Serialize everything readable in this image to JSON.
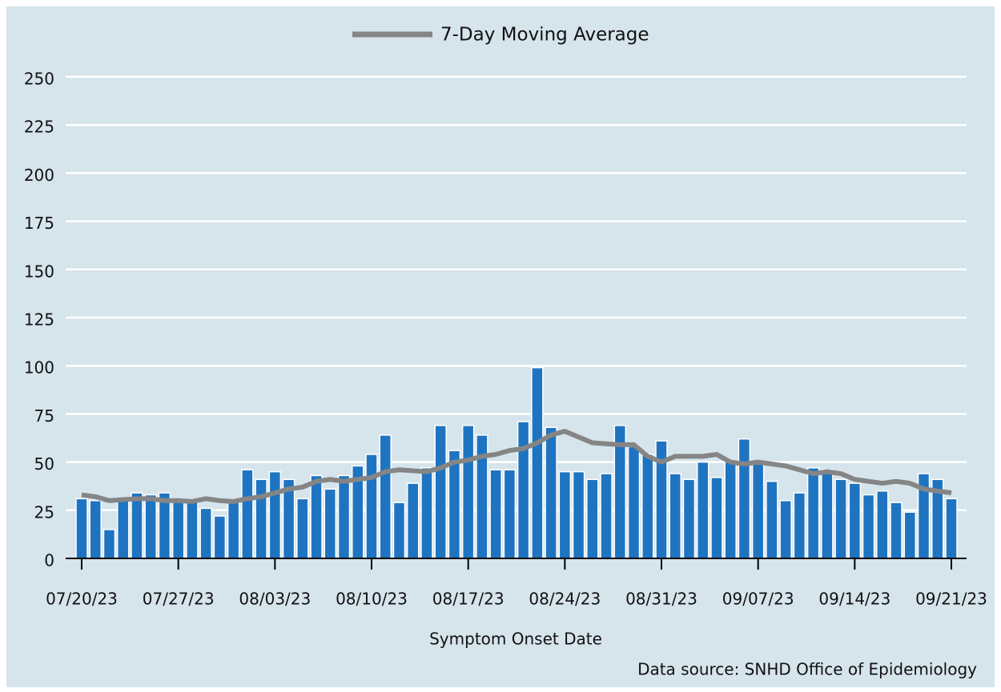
{
  "chart_data": {
    "type": "bar",
    "xlabel": "Symptom Onset Date",
    "source": "Data source: SNHD Office of Epidemiology",
    "categories": [
      "07/20/23",
      null,
      null,
      null,
      null,
      null,
      null,
      "07/27/23",
      null,
      null,
      null,
      null,
      null,
      null,
      "08/03/23",
      null,
      null,
      null,
      null,
      null,
      null,
      "08/10/23",
      null,
      null,
      null,
      null,
      null,
      null,
      "08/17/23",
      null,
      null,
      null,
      null,
      null,
      null,
      "08/24/23",
      null,
      null,
      null,
      null,
      null,
      null,
      "08/31/23",
      null,
      null,
      null,
      null,
      null,
      null,
      "09/07/23",
      null,
      null,
      null,
      null,
      null,
      null,
      "09/14/23",
      null,
      null,
      null,
      null,
      null,
      null,
      "09/21/23"
    ],
    "series": [
      {
        "type": "bar",
        "color": "#1f74c1",
        "values": [
          31,
          30,
          15,
          30,
          34,
          33,
          34,
          30,
          30,
          26,
          22,
          30,
          46,
          41,
          45,
          41,
          31,
          43,
          36,
          43,
          48,
          54,
          64,
          29,
          39,
          47,
          69,
          56,
          69,
          64,
          46,
          46,
          71,
          99,
          68,
          45,
          45,
          41,
          44,
          69,
          58,
          54,
          61,
          44,
          41,
          50,
          42,
          50,
          62,
          49,
          40,
          30,
          34,
          47,
          46,
          41,
          39,
          33,
          35,
          29,
          24,
          44,
          41,
          31
        ]
      },
      {
        "type": "line",
        "name": "7-Day Moving Average",
        "color": "#858585",
        "values": [
          33,
          32,
          30,
          30.5,
          31,
          31,
          30,
          30,
          29.5,
          31,
          30,
          29.5,
          31,
          32,
          34,
          36,
          37,
          40,
          41,
          40,
          41,
          42,
          45,
          46,
          45.5,
          45,
          47,
          50,
          51,
          53,
          54,
          56,
          57,
          60,
          64,
          66,
          63,
          60,
          59.5,
          59,
          59,
          53,
          50,
          53,
          53,
          53,
          54,
          50,
          49,
          50,
          49,
          48,
          46,
          44,
          45,
          44,
          41,
          40,
          39,
          40,
          39,
          36,
          35,
          34
        ]
      }
    ],
    "ylim": [
      0,
      250
    ],
    "yticks": [
      0,
      25,
      50,
      75,
      100,
      125,
      150,
      175,
      200,
      225,
      250
    ],
    "grid": true,
    "legend": "top"
  }
}
